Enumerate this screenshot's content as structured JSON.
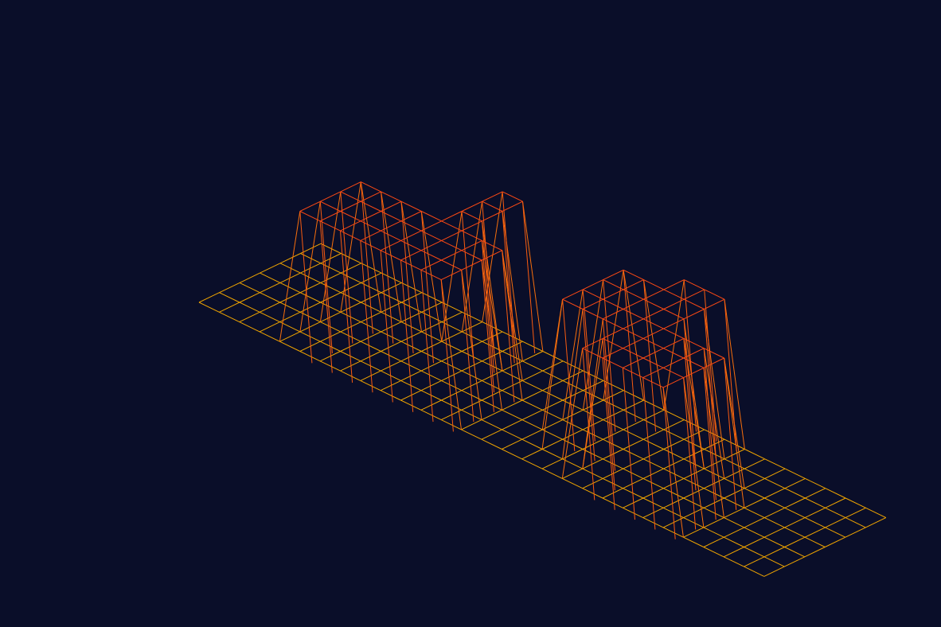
{
  "scene": {
    "type": "isometric-wireframe-height-map",
    "background_color": "#0a0e29",
    "base_line_color": "#f0a500",
    "peak_line_color": "#ff2a1a",
    "grid": {
      "rows": 6,
      "cols": 28
    },
    "peak_height_units": 1,
    "blocks": [
      {
        "name": "peak-1",
        "u0": 5,
        "u1": 9,
        "v0": 0,
        "v1": 3
      },
      {
        "name": "peak-2",
        "u0": 10,
        "u1": 12,
        "v0": 0,
        "v1": 3
      },
      {
        "name": "peak-3",
        "u0": 9,
        "u1": 10,
        "v0": 3,
        "v1": 6
      },
      {
        "name": "peak-4",
        "u0": 19,
        "u1": 23,
        "v0": 0,
        "v1": 3
      },
      {
        "name": "peak-5",
        "u0": 16,
        "u1": 20,
        "v0": 2,
        "v1": 5
      },
      {
        "name": "peak-6",
        "u0": 18,
        "u1": 20,
        "v0": 4,
        "v1": 6
      }
    ]
  }
}
